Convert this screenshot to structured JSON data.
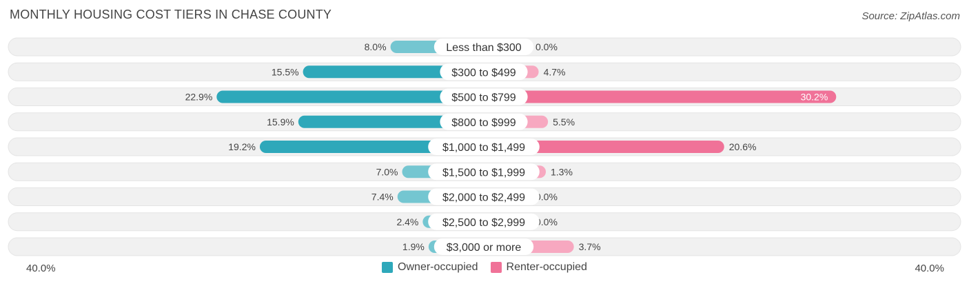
{
  "title": "MONTHLY HOUSING COST TIERS IN CHASE COUNTY",
  "source": "Source: ZipAtlas.com",
  "colors": {
    "owner": "#2ea8ba",
    "owner_light": "#74c6d1",
    "renter": "#f07298",
    "renter_light": "#f7a8c0",
    "track": "#f1f1f1"
  },
  "chart_data": {
    "type": "bar",
    "orientation": "horizontal-diverging",
    "categories": [
      "Less than $300",
      "$300 to $499",
      "$500 to $799",
      "$800 to $999",
      "$1,000 to $1,499",
      "$1,500 to $1,999",
      "$2,000 to $2,499",
      "$2,500 to $2,999",
      "$3,000 or more"
    ],
    "series": [
      {
        "name": "Owner-occupied",
        "values": [
          8.0,
          15.5,
          22.9,
          15.9,
          19.2,
          7.0,
          7.4,
          2.4,
          1.9
        ],
        "labels": [
          "8.0%",
          "15.5%",
          "22.9%",
          "15.9%",
          "19.2%",
          "7.0%",
          "7.4%",
          "2.4%",
          "1.9%"
        ]
      },
      {
        "name": "Renter-occupied",
        "values": [
          0.0,
          4.7,
          30.2,
          5.5,
          20.6,
          1.3,
          0.0,
          0.0,
          3.7
        ],
        "labels": [
          "0.0%",
          "4.7%",
          "30.2%",
          "5.5%",
          "20.6%",
          "1.3%",
          "0.0%",
          "0.0%",
          "3.7%"
        ]
      }
    ],
    "xlim": [
      -40,
      40
    ],
    "axis_left_label": "40.0%",
    "axis_right_label": "40.0%",
    "legend_position": "bottom-center"
  }
}
